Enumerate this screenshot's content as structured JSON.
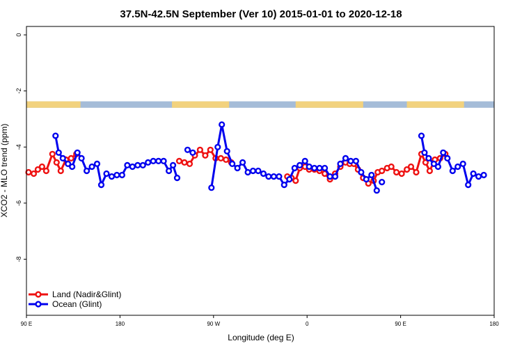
{
  "chart_data": {
    "type": "line",
    "title": "37.5N-42.5N September (Ver 10)   2015-01-01 to 2020-12-18",
    "xlabel": "Longitude (deg E)",
    "ylabel": "XCO2 - MLO trend (ppm)",
    "xlim": [
      90,
      540
    ],
    "ylim": [
      -10,
      0.3
    ],
    "x_ticks": [
      {
        "value": 90,
        "label": "90 E"
      },
      {
        "value": 180,
        "label": "180"
      },
      {
        "value": 270,
        "label": "90 W"
      },
      {
        "value": 360,
        "label": "0"
      },
      {
        "value": 450,
        "label": "90 E"
      },
      {
        "value": 540,
        "label": "180"
      }
    ],
    "y_ticks": [
      {
        "value": 0,
        "label": "0"
      },
      {
        "value": -2,
        "label": "-2"
      },
      {
        "value": -4,
        "label": "-4"
      },
      {
        "value": -6,
        "label": "-6"
      },
      {
        "value": -8,
        "label": "-8"
      }
    ],
    "legend_position": "bottom-left",
    "land_ocean_band": {
      "y_range": [
        -2.6,
        -2.37
      ],
      "land_color": "#f2d27e",
      "ocean_color": "#a5bcd8",
      "land_segments": [
        [
          90,
          142
        ],
        [
          230,
          285
        ],
        [
          349,
          414
        ],
        [
          456,
          511
        ]
      ]
    },
    "series": [
      {
        "name": "Land (Nadir&Glint)",
        "color": "#ee1111",
        "segments": [
          [
            [
              92,
              -4.9
            ],
            [
              97,
              -4.95
            ],
            [
              101,
              -4.8
            ],
            [
              105,
              -4.7
            ],
            [
              109,
              -4.85
            ],
            [
              115,
              -4.25
            ],
            [
              119,
              -4.55
            ],
            [
              123,
              -4.85
            ],
            [
              128,
              -4.45
            ],
            [
              133,
              -4.4
            ],
            [
              138,
              -4.25
            ]
          ],
          [
            [
              237,
              -4.5
            ],
            [
              242,
              -4.55
            ],
            [
              247,
              -4.6
            ],
            [
              252,
              -4.3
            ],
            [
              257,
              -4.1
            ],
            [
              262,
              -4.3
            ],
            [
              267,
              -4.1
            ],
            [
              272,
              -4.4
            ],
            [
              277,
              -4.4
            ],
            [
              282,
              -4.45
            ],
            [
              287,
              -4.55
            ]
          ],
          [
            [
              341,
              -5.05
            ],
            [
              345,
              -5.1
            ],
            [
              349,
              -5.2
            ],
            [
              353,
              -4.75
            ],
            [
              358,
              -4.7
            ],
            [
              362,
              -4.8
            ],
            [
              367,
              -4.8
            ],
            [
              372,
              -4.85
            ],
            [
              377,
              -4.95
            ],
            [
              382,
              -5.15
            ],
            [
              387,
              -4.95
            ],
            [
              392,
              -4.7
            ],
            [
              397,
              -4.55
            ],
            [
              401,
              -4.6
            ],
            [
              405,
              -4.6
            ],
            [
              409,
              -4.8
            ],
            [
              414,
              -5.1
            ],
            [
              419,
              -5.3
            ],
            [
              424,
              -5.2
            ],
            [
              428,
              -4.9
            ],
            [
              432,
              -4.85
            ],
            [
              437,
              -4.75
            ],
            [
              441,
              -4.7
            ],
            [
              446,
              -4.9
            ],
            [
              451,
              -4.95
            ],
            [
              456,
              -4.8
            ],
            [
              460,
              -4.7
            ],
            [
              465,
              -4.9
            ],
            [
              470,
              -4.25
            ],
            [
              474,
              -4.55
            ],
            [
              478,
              -4.85
            ],
            [
              483,
              -4.45
            ],
            [
              488,
              -4.4
            ],
            [
              493,
              -4.25
            ]
          ]
        ]
      },
      {
        "name": "Ocean (Glint)",
        "color": "#0000ee",
        "segments": [
          [
            [
              118,
              -3.6
            ],
            [
              121,
              -4.2
            ],
            [
              125,
              -4.4
            ],
            [
              130,
              -4.6
            ],
            [
              134,
              -4.7
            ],
            [
              139,
              -4.2
            ],
            [
              143,
              -4.4
            ],
            [
              148,
              -4.85
            ],
            [
              153,
              -4.7
            ],
            [
              158,
              -4.6
            ],
            [
              162,
              -5.35
            ],
            [
              167,
              -4.95
            ],
            [
              172,
              -5.05
            ],
            [
              177,
              -5.0
            ],
            [
              182,
              -5.0
            ],
            [
              187,
              -4.65
            ],
            [
              192,
              -4.7
            ],
            [
              197,
              -4.65
            ],
            [
              202,
              -4.65
            ],
            [
              207,
              -4.55
            ],
            [
              212,
              -4.5
            ],
            [
              217,
              -4.5
            ],
            [
              222,
              -4.5
            ],
            [
              227,
              -4.85
            ],
            [
              231,
              -4.65
            ],
            [
              235,
              -5.1
            ]
          ],
          [
            [
              245,
              -4.1
            ],
            [
              250,
              -4.2
            ]
          ],
          [
            [
              268,
              -5.45
            ],
            [
              274,
              -4.0
            ],
            [
              278,
              -3.2
            ],
            [
              283,
              -4.15
            ],
            [
              288,
              -4.6
            ],
            [
              293,
              -4.75
            ],
            [
              298,
              -4.55
            ],
            [
              303,
              -4.9
            ],
            [
              308,
              -4.85
            ],
            [
              313,
              -4.85
            ],
            [
              318,
              -4.95
            ],
            [
              323,
              -5.05
            ],
            [
              328,
              -5.05
            ],
            [
              333,
              -5.05
            ],
            [
              338,
              -5.35
            ],
            [
              343,
              -5.15
            ],
            [
              348,
              -4.75
            ],
            [
              353,
              -4.65
            ],
            [
              358,
              -4.5
            ],
            [
              362,
              -4.7
            ],
            [
              367,
              -4.75
            ],
            [
              372,
              -4.75
            ],
            [
              377,
              -4.75
            ],
            [
              382,
              -5.05
            ],
            [
              387,
              -5.05
            ],
            [
              392,
              -4.6
            ],
            [
              397,
              -4.4
            ],
            [
              402,
              -4.5
            ],
            [
              407,
              -4.5
            ],
            [
              412,
              -4.9
            ],
            [
              417,
              -5.15
            ],
            [
              422,
              -5.0
            ],
            [
              427,
              -5.55
            ]
          ],
          [
            [
              432,
              -5.25
            ]
          ],
          [
            [
              470,
              -3.6
            ],
            [
              473,
              -4.2
            ],
            [
              477,
              -4.4
            ],
            [
              482,
              -4.6
            ],
            [
              486,
              -4.7
            ],
            [
              491,
              -4.2
            ],
            [
              495,
              -4.4
            ],
            [
              500,
              -4.85
            ],
            [
              505,
              -4.7
            ],
            [
              510,
              -4.6
            ],
            [
              515,
              -5.35
            ],
            [
              520,
              -4.95
            ],
            [
              525,
              -5.05
            ],
            [
              530,
              -5.0
            ]
          ]
        ]
      }
    ]
  }
}
